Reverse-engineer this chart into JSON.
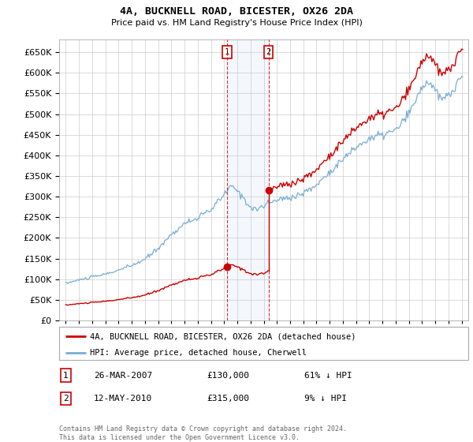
{
  "title": "4A, BUCKNELL ROAD, BICESTER, OX26 2DA",
  "subtitle": "Price paid vs. HM Land Registry's House Price Index (HPI)",
  "legend_line1": "4A, BUCKNELL ROAD, BICESTER, OX26 2DA (detached house)",
  "legend_line2": "HPI: Average price, detached house, Cherwell",
  "transaction1_date": "26-MAR-2007",
  "transaction1_price": "£130,000",
  "transaction1_hpi": "61% ↓ HPI",
  "transaction2_date": "12-MAY-2010",
  "transaction2_price": "£315,000",
  "transaction2_hpi": "9% ↓ HPI",
  "footnote": "Contains HM Land Registry data © Crown copyright and database right 2024.\nThis data is licensed under the Open Government Licence v3.0.",
  "red_color": "#cc0000",
  "blue_color": "#7aadd4",
  "marker1_x": 2007.23,
  "marker1_y": 130000,
  "marker2_x": 2010.37,
  "marker2_y": 315000,
  "ylim": [
    0,
    680000
  ],
  "xlim": [
    1994.5,
    2025.5
  ],
  "yticks": [
    0,
    50000,
    100000,
    150000,
    200000,
    250000,
    300000,
    350000,
    400000,
    450000,
    500000,
    550000,
    600000,
    650000
  ],
  "xticks": [
    1995,
    1996,
    1997,
    1998,
    1999,
    2000,
    2001,
    2002,
    2003,
    2004,
    2005,
    2006,
    2007,
    2008,
    2009,
    2010,
    2011,
    2012,
    2013,
    2014,
    2015,
    2016,
    2017,
    2018,
    2019,
    2020,
    2021,
    2022,
    2023,
    2024,
    2025
  ]
}
